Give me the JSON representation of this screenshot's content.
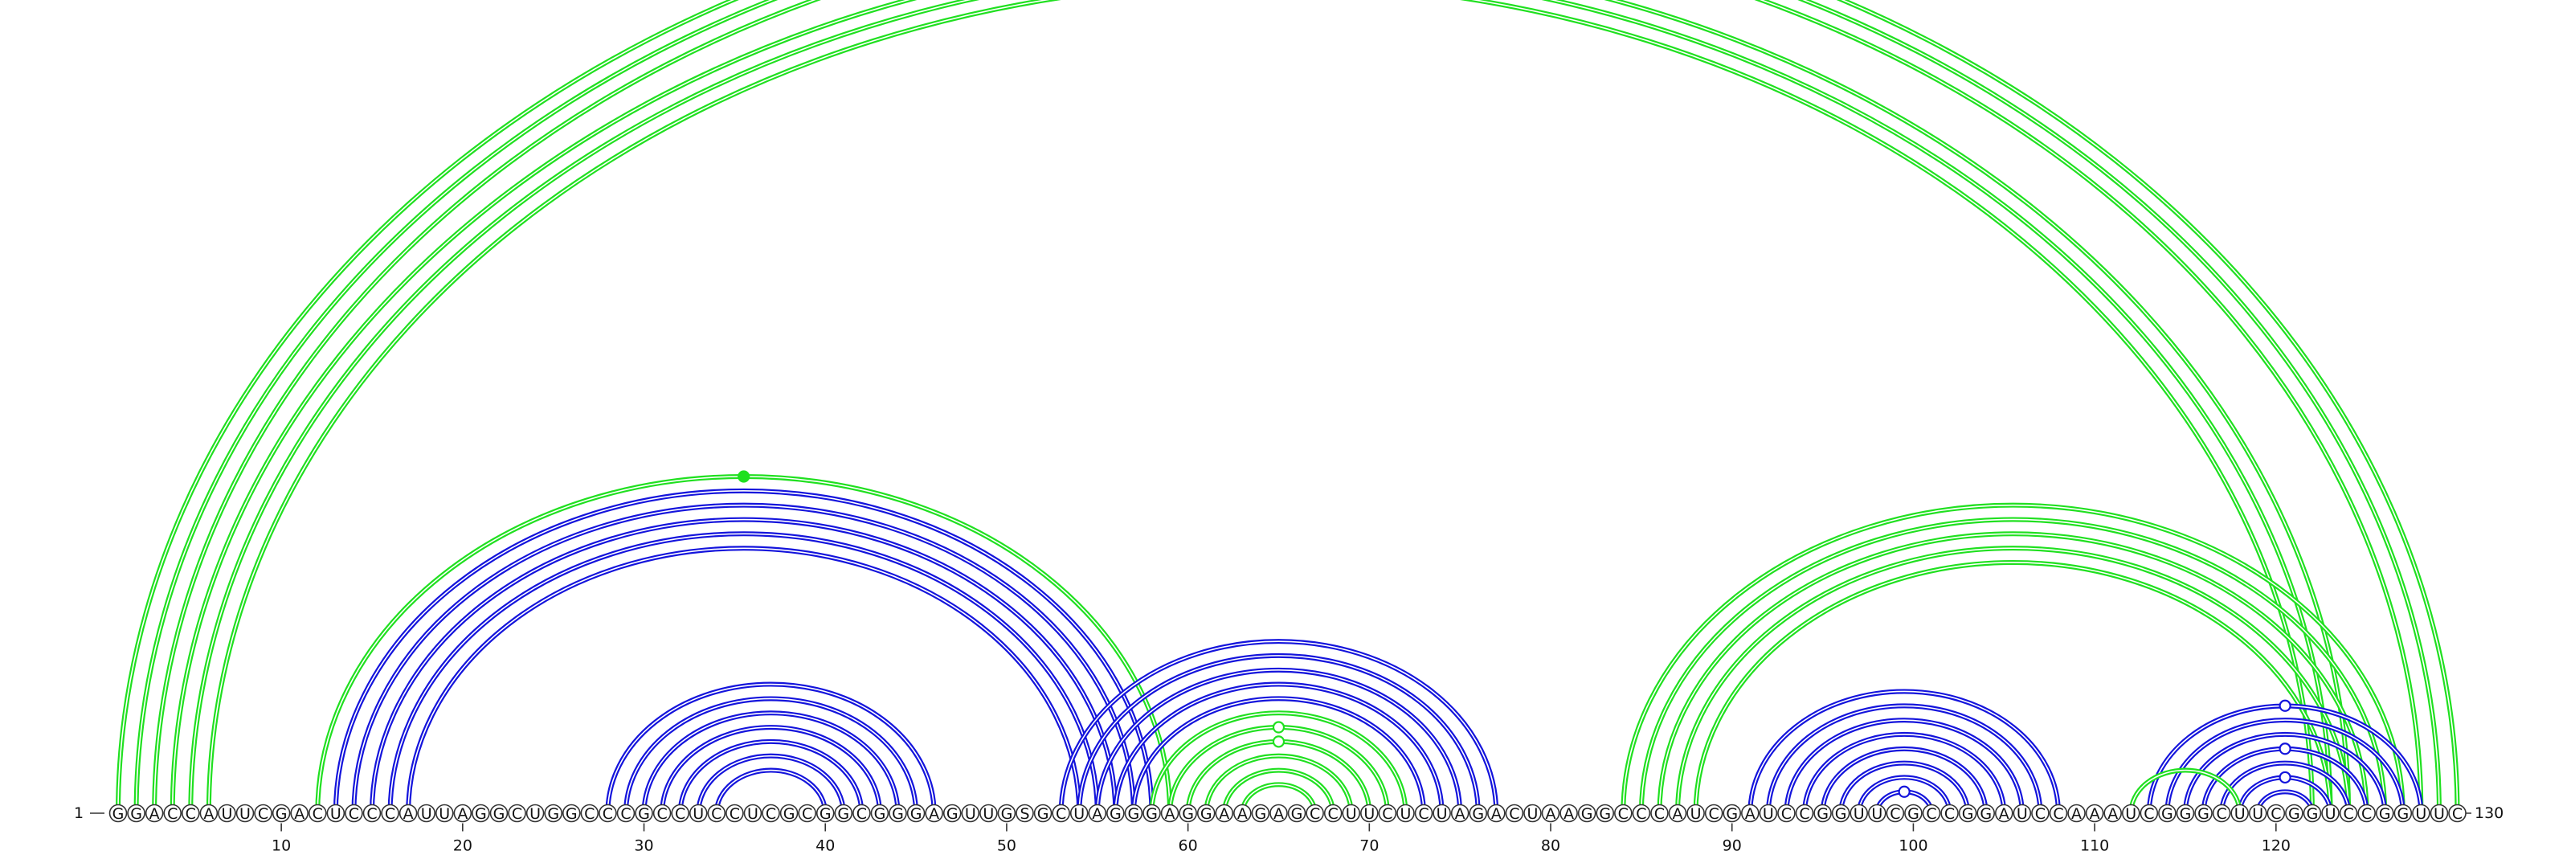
{
  "sequence": "GGACCAUUCGACUCCCAUUAGGCUGGCCCGCCUCCUCGCGGCGGGAGUUGSGCUAGGGAGGAAGAGCCUUCUCUAGACUAAGGCCCAUCGAUCCGGUUCGCCGGAUCCAAAUCGGGCUUCGGUCCGGUUC",
  "start_label": "1",
  "end_label": "130",
  "ticks": [
    {
      "pos": 10,
      "label": "10"
    },
    {
      "pos": 20,
      "label": "20"
    },
    {
      "pos": 30,
      "label": "30"
    },
    {
      "pos": 40,
      "label": "40"
    },
    {
      "pos": 50,
      "label": "50"
    },
    {
      "pos": 60,
      "label": "60"
    },
    {
      "pos": 70,
      "label": "70"
    },
    {
      "pos": 80,
      "label": "80"
    },
    {
      "pos": 90,
      "label": "90"
    },
    {
      "pos": 100,
      "label": "100"
    },
    {
      "pos": 110,
      "label": "110"
    },
    {
      "pos": 120,
      "label": "120"
    }
  ],
  "colors": {
    "blue": "#1414dc",
    "green": "#20e020"
  },
  "helices": [
    {
      "color": "green",
      "pairs": [
        [
          1,
          130
        ],
        [
          2,
          129
        ],
        [
          3,
          128
        ]
      ]
    },
    {
      "color": "green",
      "pairs": [
        [
          4,
          124
        ],
        [
          5,
          123
        ],
        [
          6,
          122
        ]
      ]
    },
    {
      "color": "green",
      "pairs": [
        [
          12,
          59
        ]
      ]
    },
    {
      "color": "blue",
      "pairs": [
        [
          13,
          58
        ],
        [
          14,
          57
        ],
        [
          15,
          56
        ],
        [
          16,
          55
        ],
        [
          17,
          54
        ]
      ]
    },
    {
      "color": "blue",
      "pairs": [
        [
          28,
          46
        ],
        [
          29,
          45
        ],
        [
          30,
          44
        ],
        [
          31,
          43
        ],
        [
          32,
          42
        ],
        [
          33,
          41
        ],
        [
          34,
          40
        ]
      ]
    },
    {
      "color": "blue",
      "pairs": [
        [
          53,
          77
        ],
        [
          54,
          76
        ],
        [
          55,
          75
        ],
        [
          56,
          74
        ],
        [
          57,
          73
        ]
      ]
    },
    {
      "color": "green",
      "pairs": [
        [
          58,
          72
        ],
        [
          59,
          71
        ],
        [
          60,
          70
        ],
        [
          61,
          69
        ],
        [
          62,
          68
        ],
        [
          63,
          67
        ]
      ]
    },
    {
      "color": "green",
      "pairs": [
        [
          84,
          127
        ],
        [
          85,
          126
        ],
        [
          86,
          125
        ],
        [
          87,
          124
        ],
        [
          88,
          123
        ]
      ]
    },
    {
      "color": "blue",
      "pairs": [
        [
          91,
          108
        ],
        [
          92,
          107
        ],
        [
          93,
          106
        ],
        [
          94,
          105
        ],
        [
          95,
          104
        ],
        [
          96,
          103
        ],
        [
          97,
          102
        ],
        [
          98,
          101
        ]
      ]
    },
    {
      "color": "blue",
      "pairs": [
        [
          113,
          128
        ],
        [
          114,
          127
        ],
        [
          115,
          126
        ],
        [
          116,
          125
        ],
        [
          117,
          124
        ],
        [
          118,
          123
        ],
        [
          119,
          122
        ]
      ]
    },
    {
      "color": "green",
      "pairs": [
        [
          112,
          118
        ]
      ]
    }
  ],
  "markers": [
    {
      "pair": [
        1,
        130
      ],
      "style": "open",
      "color": "green"
    },
    {
      "pair": [
        12,
        59
      ],
      "style": "filled",
      "color": "green"
    },
    {
      "pair": [
        59,
        71
      ],
      "style": "open",
      "color": "green"
    },
    {
      "pair": [
        60,
        70
      ],
      "style": "open",
      "color": "green"
    },
    {
      "pair": [
        98,
        101
      ],
      "style": "open",
      "color": "blue"
    },
    {
      "pair": [
        113,
        128
      ],
      "style": "open",
      "color": "blue"
    },
    {
      "pair": [
        116,
        125
      ],
      "style": "open",
      "color": "blue"
    },
    {
      "pair": [
        118,
        123
      ],
      "style": "open",
      "color": "blue"
    }
  ]
}
